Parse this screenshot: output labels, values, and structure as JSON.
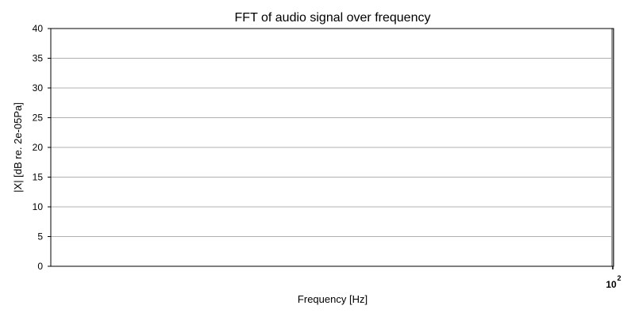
{
  "chart_data": {
    "type": "line",
    "title": "FFT of audio signal over frequency",
    "xlabel": "Frequency [Hz]",
    "ylabel": "|X| [dB re. 2e-05Pa]",
    "xscale": "log",
    "x_ticks": [
      {
        "value": 100,
        "label": "10",
        "exponent": "2"
      }
    ],
    "ylim": [
      0,
      40
    ],
    "y_ticks": [
      0,
      5,
      10,
      15,
      20,
      25,
      30,
      35,
      40
    ],
    "grid": {
      "y": true,
      "x": false
    },
    "series": [],
    "colors": {
      "grid": "#b0b0b0",
      "axes": "#000000",
      "series_hint": "#a0a0a0"
    }
  }
}
